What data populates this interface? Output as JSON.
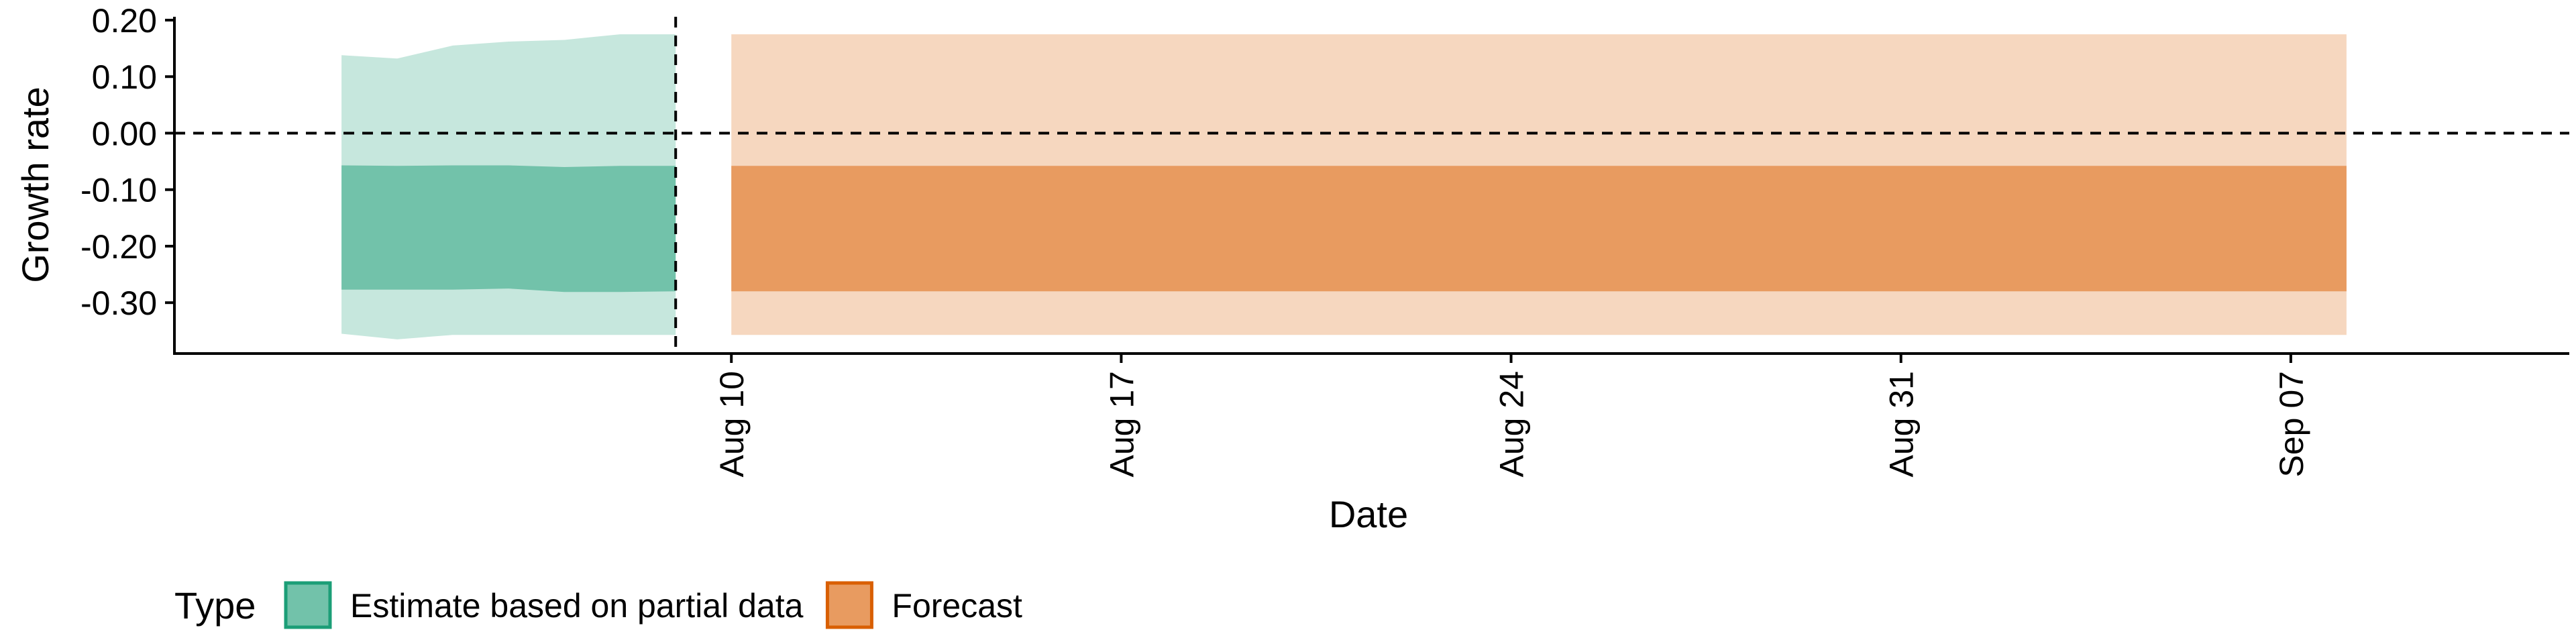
{
  "chart_data": {
    "type": "area",
    "xlabel": "Date",
    "ylabel": "Growth rate",
    "x_axis": {
      "type": "date",
      "range": [
        "2020-07-31",
        "2020-09-12"
      ],
      "ticks": [
        {
          "date": "2020-08-10",
          "label": "Aug 10"
        },
        {
          "date": "2020-08-17",
          "label": "Aug 17"
        },
        {
          "date": "2020-08-24",
          "label": "Aug 24"
        },
        {
          "date": "2020-08-31",
          "label": "Aug 31"
        },
        {
          "date": "2020-09-07",
          "label": "Sep 07"
        }
      ]
    },
    "y_axis": {
      "range": [
        -0.39,
        0.2
      ],
      "ticks": [
        {
          "value": 0.2,
          "label": "0.20"
        },
        {
          "value": 0.1,
          "label": "0.10"
        },
        {
          "value": 0.0,
          "label": "0.00"
        },
        {
          "value": -0.1,
          "label": "-0.10"
        },
        {
          "value": -0.2,
          "label": "-0.20"
        },
        {
          "value": -0.3,
          "label": "-0.30"
        }
      ]
    },
    "reference_lines": [
      {
        "orientation": "horizontal",
        "value": 0.0,
        "style": "dashed"
      },
      {
        "orientation": "vertical",
        "date": "2020-08-09",
        "style": "dashed"
      }
    ],
    "series": [
      {
        "name": "Estimate based on partial data",
        "color": "#1b9e77",
        "data": [
          {
            "date": "2020-08-03",
            "lower90": -0.355,
            "lower50": -0.277,
            "upper50": -0.057,
            "upper90": 0.138
          },
          {
            "date": "2020-08-04",
            "lower90": -0.365,
            "lower50": -0.277,
            "upper50": -0.058,
            "upper90": 0.132
          },
          {
            "date": "2020-08-05",
            "lower90": -0.357,
            "lower50": -0.277,
            "upper50": -0.057,
            "upper90": 0.155
          },
          {
            "date": "2020-08-06",
            "lower90": -0.357,
            "lower50": -0.275,
            "upper50": -0.057,
            "upper90": 0.162
          },
          {
            "date": "2020-08-07",
            "lower90": -0.357,
            "lower50": -0.281,
            "upper50": -0.06,
            "upper90": 0.165
          },
          {
            "date": "2020-08-08",
            "lower90": -0.357,
            "lower50": -0.281,
            "upper50": -0.058,
            "upper90": 0.175
          },
          {
            "date": "2020-08-09",
            "lower90": -0.357,
            "lower50": -0.28,
            "upper50": -0.058,
            "upper90": 0.175
          }
        ]
      },
      {
        "name": "Forecast",
        "color": "#d95f02",
        "data": [
          {
            "date": "2020-08-10",
            "lower90": -0.357,
            "lower50": -0.28,
            "upper50": -0.058,
            "upper90": 0.175
          },
          {
            "date": "2020-09-08",
            "lower90": -0.357,
            "lower50": -0.28,
            "upper50": -0.058,
            "upper90": 0.175
          }
        ]
      }
    ],
    "legend": {
      "title": "Type",
      "position": "bottom-left",
      "entries": [
        {
          "label": "Estimate based on partial data",
          "fill": "#72c2aa",
          "border": "#1b9e77"
        },
        {
          "label": "Forecast",
          "fill": "#e89b60",
          "border": "#d95f02"
        }
      ]
    },
    "grid": false,
    "colors": {
      "estimate_inner": "#72c2aa",
      "estimate_outer": "#c6e7dd",
      "forecast_inner": "#e89b60",
      "forecast_outer": "#f6d7bf"
    }
  }
}
